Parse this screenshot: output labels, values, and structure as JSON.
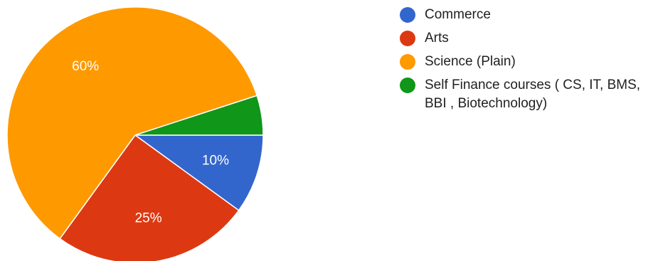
{
  "chart_data": {
    "type": "pie",
    "legend_position": "right",
    "slices": [
      {
        "label": "Commerce",
        "value": 10,
        "display": "10%",
        "color": "#3366cc"
      },
      {
        "label": "Arts",
        "value": 25,
        "display": "25%",
        "color": "#dc3912"
      },
      {
        "label": "Science (Plain)",
        "value": 60,
        "display": "60%",
        "color": "#ff9900"
      },
      {
        "label": "Self Finance courses ( CS, IT, BMS, BBI , Biotechnology)",
        "value": 5,
        "display": "",
        "color": "#109618"
      }
    ]
  }
}
